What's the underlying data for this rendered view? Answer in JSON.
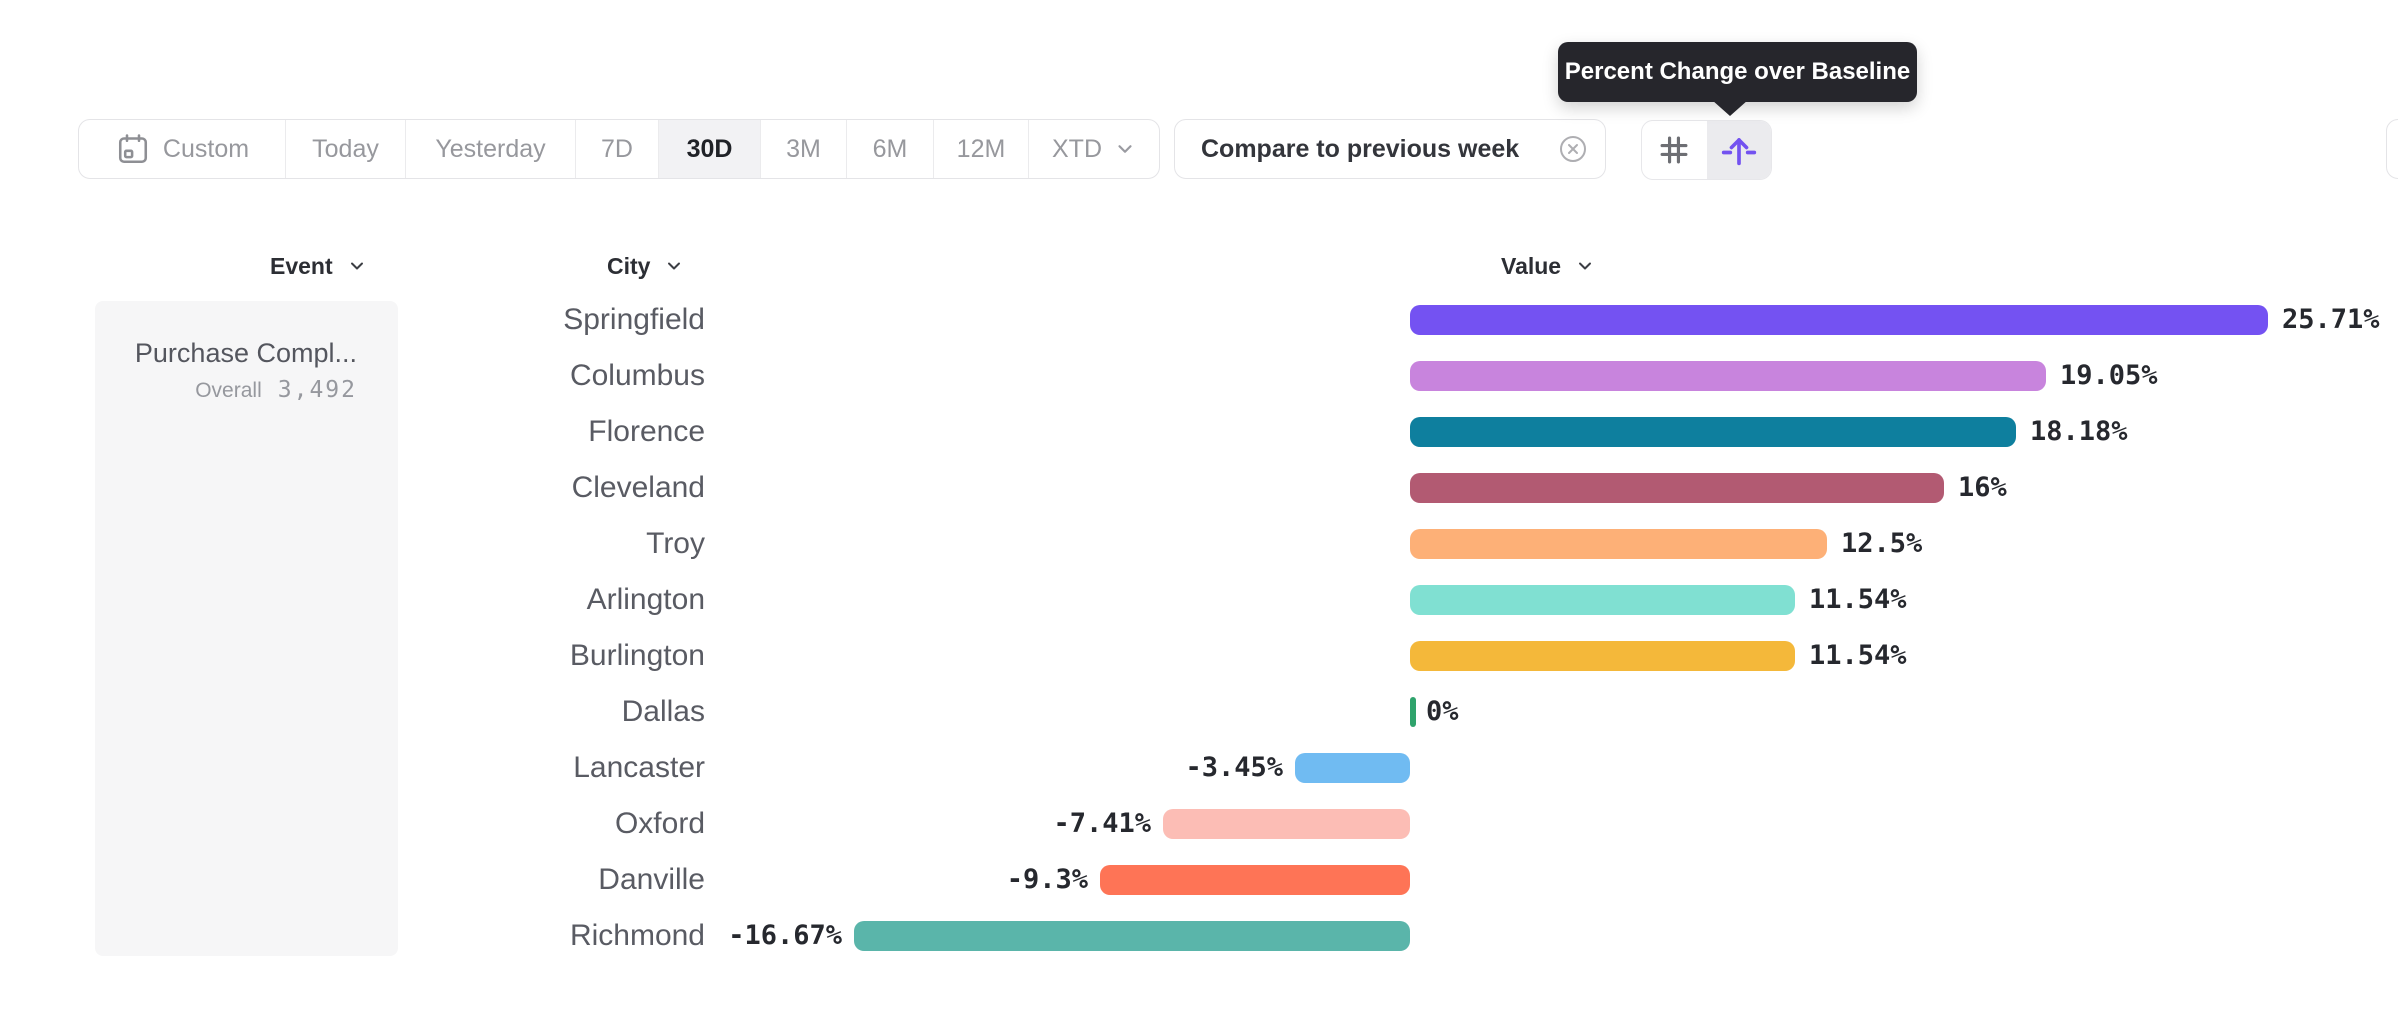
{
  "tooltip": {
    "text": "Percent Change over Baseline"
  },
  "toolbar": {
    "items": [
      {
        "label": "Custom",
        "icon": "calendar"
      },
      {
        "label": "Today"
      },
      {
        "label": "Yesterday"
      },
      {
        "label": "7D"
      },
      {
        "label": "30D",
        "selected": true
      },
      {
        "label": "3M"
      },
      {
        "label": "6M"
      },
      {
        "label": "12M"
      },
      {
        "label": "XTD",
        "has_chevron": true
      }
    ]
  },
  "compare_chip": {
    "label": "Compare to previous week",
    "close_icon": "circle-x"
  },
  "view_toggle": {
    "options": [
      {
        "icon": "hash-grid",
        "selected": false
      },
      {
        "icon": "baseline-arrow",
        "selected": true
      }
    ],
    "accent_color": "#7352f0"
  },
  "table": {
    "columns": [
      {
        "label": "Event"
      },
      {
        "label": "City"
      },
      {
        "label": "Value"
      }
    ]
  },
  "event_panel": {
    "event_name": "Purchase Compl...",
    "overall_label": "Overall",
    "overall_value": "3,492"
  },
  "chart_data": {
    "type": "bar",
    "orientation": "horizontal",
    "title": "Percent Change over Baseline",
    "xlabel": "Value",
    "ylabel": "City",
    "unit": "percent",
    "baseline": 0,
    "xlim": [
      -18,
      27
    ],
    "grid": false,
    "legend": "none",
    "categories": [
      "Springfield",
      "Columbus",
      "Florence",
      "Cleveland",
      "Troy",
      "Arlington",
      "Burlington",
      "Dallas",
      "Lancaster",
      "Oxford",
      "Danville",
      "Richmond"
    ],
    "values": [
      25.71,
      19.05,
      18.18,
      16,
      12.5,
      11.54,
      11.54,
      0,
      -3.45,
      -7.41,
      -9.3,
      -16.67
    ],
    "value_labels": [
      "25.71%",
      "19.05%",
      "18.18%",
      "16%",
      "12.5%",
      "11.54%",
      "11.54%",
      "0%",
      "-3.45%",
      "-7.41%",
      "-9.3%",
      "-16.67%"
    ],
    "colors": [
      "#7452f2",
      "#c884dd",
      "#0e7f9e",
      "#b25a72",
      "#fdb077",
      "#80e0d2",
      "#f4b83a",
      "#2fa36c",
      "#70bbf2",
      "#fcbdb5",
      "#fe7456",
      "#5ab5aa"
    ]
  }
}
